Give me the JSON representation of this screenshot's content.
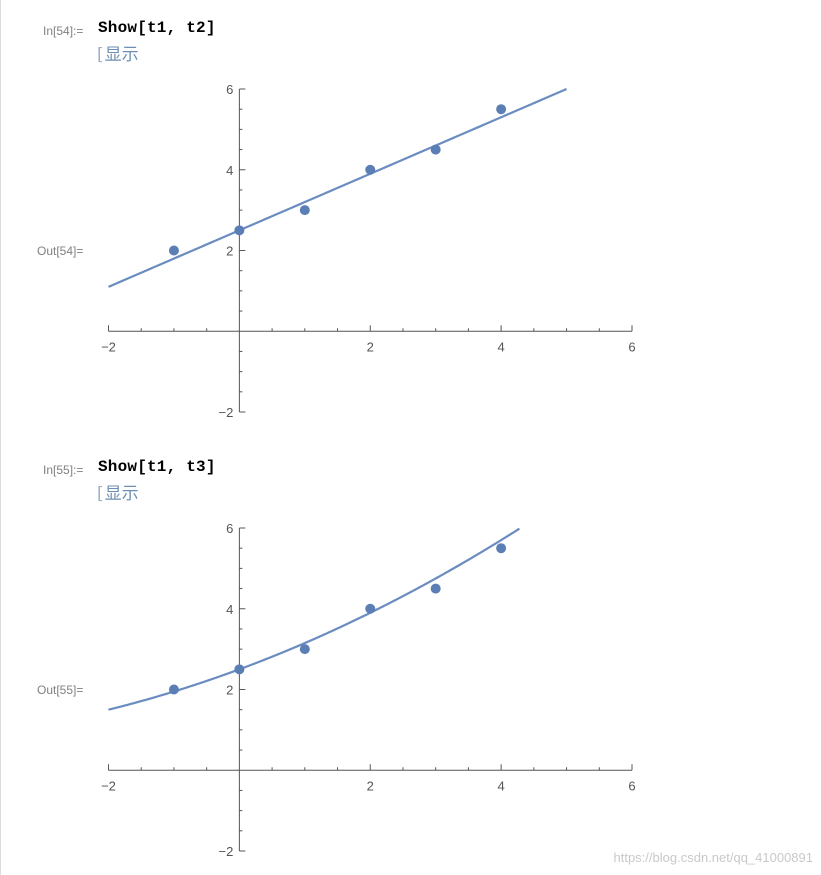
{
  "cells": [
    {
      "in_label": "In[54]:=",
      "code": "Show[t1, t2]",
      "hint": "显示",
      "out_label": "Out[54]=",
      "chart_data": {
        "type": "scatter",
        "points": [
          [
            -1,
            2
          ],
          [
            0,
            2.5
          ],
          [
            1,
            3
          ],
          [
            2,
            4
          ],
          [
            3,
            4.5
          ],
          [
            4,
            5.5
          ]
        ],
        "fit": {
          "kind": "linear",
          "intercept": 2.5,
          "slope": 0.7
        },
        "xlim": [
          -2,
          6
        ],
        "ylim": [
          -2,
          6
        ],
        "x_ticks": [
          "−2",
          "2",
          "4",
          "6"
        ],
        "y_ticks": [
          "−2",
          "2",
          "4",
          "6"
        ],
        "colors": {
          "point": "#5b7fb5",
          "line": "#6b8cc0",
          "axis": "#555555"
        }
      }
    },
    {
      "in_label": "In[55]:=",
      "code": "Show[t1, t3]",
      "hint": "显示",
      "out_label": "Out[55]=",
      "chart_data": {
        "type": "scatter",
        "points": [
          [
            -1,
            2
          ],
          [
            0,
            2.5
          ],
          [
            1,
            3
          ],
          [
            2,
            4
          ],
          [
            3,
            4.5
          ],
          [
            4,
            5.5
          ]
        ],
        "fit": {
          "kind": "quadratic",
          "c0": 2.5,
          "c1": 0.6,
          "c2": 0.05
        },
        "xlim": [
          -2,
          6
        ],
        "ylim": [
          -2,
          6
        ],
        "x_ticks": [
          "−2",
          "2",
          "4",
          "6"
        ],
        "y_ticks": [
          "−2",
          "2",
          "4",
          "6"
        ],
        "colors": {
          "point": "#5b7fb5",
          "line": "#6b8cc0",
          "axis": "#555555"
        }
      }
    }
  ],
  "watermark": "https://blog.csdn.net/qq_41000891"
}
